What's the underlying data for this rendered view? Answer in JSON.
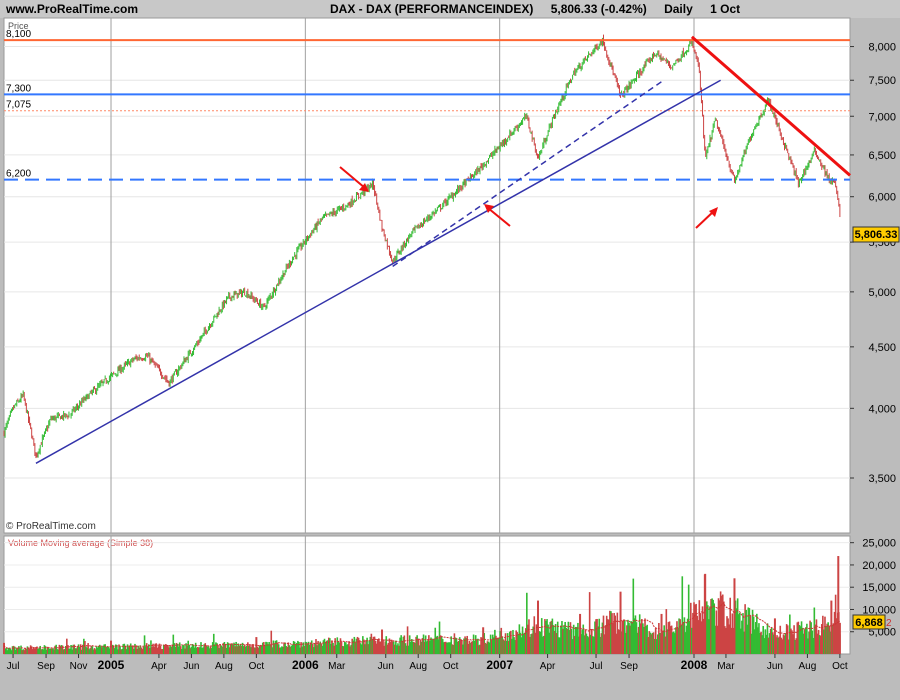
{
  "header": {
    "site": "www.ProRealTime.com",
    "instrument": "DAX - DAX (PERFORMANCEINDEX)",
    "last_quote": "5,806.33 (-0.42%)",
    "period": "Daily",
    "date": "1 Oct"
  },
  "price_panel": {
    "label": "Price",
    "copyright": "© ProRealTime.com",
    "last_value_badge": "5,806.33",
    "badge_color": "#ffcc00"
  },
  "volume_panel": {
    "label": "Volume Moving average (Simple 38)",
    "last_value_badge": "6,868",
    "badge_suffix": "2",
    "label_color": "#d05050"
  },
  "colors": {
    "up_candle": "#33bb33",
    "down_candle": "#cc4444",
    "resistance_line": "#ff6633",
    "blue_level": "#3377ff",
    "trend_line": "#3333aa",
    "downtrend_line": "#ee1111",
    "arrow": "#ee1111",
    "panel_bg": "#ffffff",
    "ma_line": "#cc3333"
  },
  "chart_data": {
    "type": "line",
    "title": "DAX - DAX (PERFORMANCEINDEX)",
    "price_axis": {
      "ticks": [
        "8,000",
        "7,500",
        "7,000",
        "6,500",
        "6,000",
        "5,500",
        "5,000",
        "4,500",
        "4,000",
        "3,500"
      ],
      "tick_values": [
        8000,
        7500,
        7000,
        6500,
        6000,
        5500,
        5000,
        4500,
        4000,
        3500
      ],
      "ylim": [
        3150,
        8450
      ],
      "scale": "log"
    },
    "volume_axis": {
      "ticks": [
        "25,000",
        "20,000",
        "15,000",
        "10,000",
        "5,000"
      ],
      "tick_values": [
        25000,
        20000,
        15000,
        10000,
        5000
      ],
      "ylim": [
        0,
        26500
      ]
    },
    "time_axis": {
      "xlim": [
        "2004-06-14",
        "2008-10-20"
      ],
      "labels": [
        {
          "date": "2004-07-01",
          "text": "Jul",
          "bold": false
        },
        {
          "date": "2004-09-01",
          "text": "Sep",
          "bold": false
        },
        {
          "date": "2004-11-01",
          "text": "Nov",
          "bold": false
        },
        {
          "date": "2005-01-01",
          "text": "2005",
          "bold": true
        },
        {
          "date": "2005-04-01",
          "text": "Apr",
          "bold": false
        },
        {
          "date": "2005-06-01",
          "text": "Jun",
          "bold": false
        },
        {
          "date": "2005-08-01",
          "text": "Aug",
          "bold": false
        },
        {
          "date": "2005-10-01",
          "text": "Oct",
          "bold": false
        },
        {
          "date": "2006-01-01",
          "text": "2006",
          "bold": true
        },
        {
          "date": "2006-03-01",
          "text": "Mar",
          "bold": false
        },
        {
          "date": "2006-06-01",
          "text": "Jun",
          "bold": false
        },
        {
          "date": "2006-08-01",
          "text": "Aug",
          "bold": false
        },
        {
          "date": "2006-10-01",
          "text": "Oct",
          "bold": false
        },
        {
          "date": "2007-01-01",
          "text": "2007",
          "bold": true
        },
        {
          "date": "2007-04-01",
          "text": "Apr",
          "bold": false
        },
        {
          "date": "2007-07-01",
          "text": "Jul",
          "bold": false
        },
        {
          "date": "2007-09-01",
          "text": "Sep",
          "bold": false
        },
        {
          "date": "2008-01-01",
          "text": "2008",
          "bold": true
        },
        {
          "date": "2008-03-01",
          "text": "Mar",
          "bold": false
        },
        {
          "date": "2008-06-01",
          "text": "Jun",
          "bold": false
        },
        {
          "date": "2008-08-01",
          "text": "Aug",
          "bold": false
        },
        {
          "date": "2008-10-01",
          "text": "Oct",
          "bold": false
        }
      ]
    },
    "price_path": [
      [
        "2004-06-14",
        3820
      ],
      [
        "2004-07-01",
        4000
      ],
      [
        "2004-07-20",
        4100
      ],
      [
        "2004-08-05",
        3800
      ],
      [
        "2004-08-13",
        3650
      ],
      [
        "2004-09-10",
        3920
      ],
      [
        "2004-10-15",
        3950
      ],
      [
        "2004-11-20",
        4100
      ],
      [
        "2004-12-31",
        4250
      ],
      [
        "2005-02-15",
        4400
      ],
      [
        "2005-03-10",
        4420
      ],
      [
        "2005-04-20",
        4200
      ],
      [
        "2005-06-15",
        4550
      ],
      [
        "2005-08-10",
        4950
      ],
      [
        "2005-09-10",
        5000
      ],
      [
        "2005-10-15",
        4850
      ],
      [
        "2005-12-10",
        5350
      ],
      [
        "2006-02-01",
        5750
      ],
      [
        "2006-03-20",
        5900
      ],
      [
        "2006-05-08",
        6150
      ],
      [
        "2006-05-25",
        5650
      ],
      [
        "2006-06-14",
        5300
      ],
      [
        "2006-07-20",
        5600
      ],
      [
        "2006-09-15",
        5900
      ],
      [
        "2006-11-20",
        6300
      ],
      [
        "2006-12-31",
        6600
      ],
      [
        "2007-02-20",
        7000
      ],
      [
        "2007-03-14",
        6450
      ],
      [
        "2007-04-10",
        6950
      ],
      [
        "2007-05-20",
        7600
      ],
      [
        "2007-07-13",
        8100
      ],
      [
        "2007-08-16",
        7270
      ],
      [
        "2007-09-20",
        7600
      ],
      [
        "2007-10-20",
        7900
      ],
      [
        "2007-11-20",
        7700
      ],
      [
        "2007-12-28",
        8050
      ],
      [
        "2008-01-10",
        7700
      ],
      [
        "2008-01-22",
        6440
      ],
      [
        "2008-02-10",
        6950
      ],
      [
        "2008-03-17",
        6170
      ],
      [
        "2008-04-20",
        6800
      ],
      [
        "2008-05-20",
        7220
      ],
      [
        "2008-06-15",
        6700
      ],
      [
        "2008-07-15",
        6150
      ],
      [
        "2008-08-15",
        6550
      ],
      [
        "2008-09-10",
        6200
      ],
      [
        "2008-09-22",
        6150
      ],
      [
        "2008-10-01",
        5806
      ]
    ],
    "horizontal_levels": [
      {
        "label": "8,100",
        "value": 8100,
        "color": "#ff6633",
        "style": "solid"
      },
      {
        "label": "7,300",
        "value": 7300,
        "color": "#3377ff",
        "style": "solid"
      },
      {
        "label": "7,075",
        "value": 7075,
        "color": "#ff8866",
        "style": "dotted"
      },
      {
        "label": "6,200",
        "value": 6200,
        "color": "#3377ff",
        "style": "dashed"
      }
    ],
    "trend_lines": [
      {
        "from": [
          "2004-08-13",
          3600
        ],
        "to": [
          "2008-02-20",
          7500
        ],
        "color": "#3333aa",
        "style": "solid"
      },
      {
        "from": [
          "2006-06-14",
          5250
        ],
        "to": [
          "2007-11-05",
          7500
        ],
        "color": "#3333aa",
        "style": "dashed"
      },
      {
        "from": [
          "2007-12-28",
          8150
        ],
        "to": [
          "2008-10-20",
          6250
        ],
        "color": "#ee1111",
        "style": "solid"
      }
    ],
    "volume_peaks": [
      [
        "2004-06-14",
        2500
      ],
      [
        "2005-01-01",
        3000
      ],
      [
        "2005-10-01",
        3800
      ],
      [
        "2006-05-25",
        5500
      ],
      [
        "2006-12-01",
        6000
      ],
      [
        "2007-03-14",
        12000
      ],
      [
        "2007-06-01",
        9000
      ],
      [
        "2007-08-16",
        14000
      ],
      [
        "2007-11-01",
        9000
      ],
      [
        "2008-01-22",
        18000
      ],
      [
        "2008-03-17",
        17000
      ],
      [
        "2008-06-01",
        8000
      ],
      [
        "2008-09-15",
        12000
      ],
      [
        "2008-09-28",
        22000
      ],
      [
        "2008-10-01",
        7000
      ]
    ],
    "volume_ma_last": 6868
  }
}
